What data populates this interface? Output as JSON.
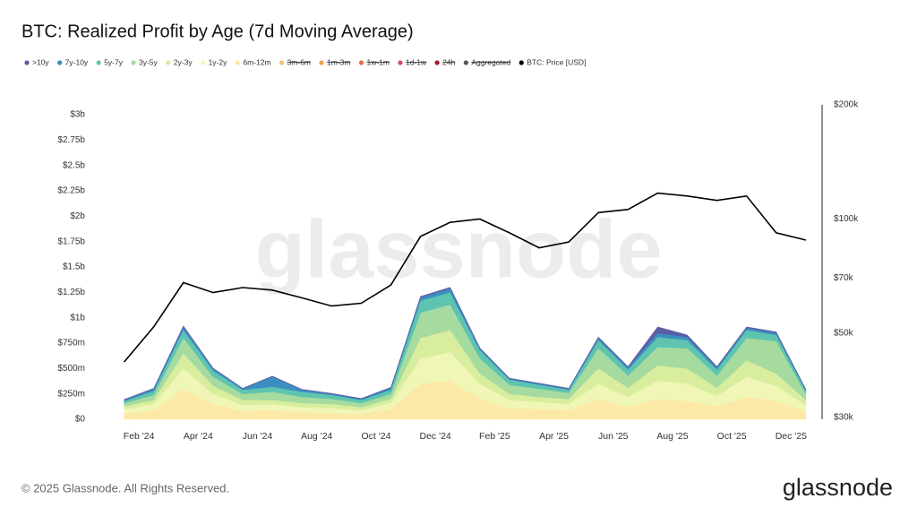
{
  "chart_data": {
    "type": "stacked-area",
    "title": "BTC: Realized Profit by Age (7d Moving Average)",
    "x": [
      "2024-01",
      "2024-02",
      "2024-03",
      "2024-04",
      "2024-05",
      "2024-06",
      "2024-07",
      "2024-08",
      "2024-09",
      "2024-10",
      "2024-11",
      "2024-12",
      "2025-01",
      "2025-02",
      "2025-03",
      "2025-04",
      "2025-05",
      "2025-06",
      "2025-07",
      "2025-08",
      "2025-09",
      "2025-10",
      "2025-11",
      "2025-12"
    ],
    "xticks": [
      {
        "value": "2024-02",
        "label": "Feb '24"
      },
      {
        "value": "2024-04",
        "label": "Apr '24"
      },
      {
        "value": "2024-06",
        "label": "Jun '24"
      },
      {
        "value": "2024-08",
        "label": "Aug '24"
      },
      {
        "value": "2024-10",
        "label": "Oct '24"
      },
      {
        "value": "2024-12",
        "label": "Dec '24"
      },
      {
        "value": "2025-02",
        "label": "Feb '25"
      },
      {
        "value": "2025-04",
        "label": "Apr '25"
      },
      {
        "value": "2025-06",
        "label": "Jun '25"
      },
      {
        "value": "2025-08",
        "label": "Aug '25"
      },
      {
        "value": "2025-10",
        "label": "Oct '25"
      },
      {
        "value": "2025-12",
        "label": "Dec '25"
      }
    ],
    "ylim": [
      0,
      3000000000.0
    ],
    "yticks": [
      {
        "value": 0,
        "label": "$0"
      },
      {
        "value": 250000000.0,
        "label": "$250m"
      },
      {
        "value": 500000000.0,
        "label": "$500m"
      },
      {
        "value": 750000000.0,
        "label": "$750m"
      },
      {
        "value": 1000000000.0,
        "label": "$1b"
      },
      {
        "value": 1250000000.0,
        "label": "$1.25b"
      },
      {
        "value": 1500000000.0,
        "label": "$1.5b"
      },
      {
        "value": 1750000000.0,
        "label": "$1.75b"
      },
      {
        "value": 2000000000.0,
        "label": "$2b"
      },
      {
        "value": 2250000000.0,
        "label": "$2.25b"
      },
      {
        "value": 2500000000.0,
        "label": "$2.5b"
      },
      {
        "value": 2750000000.0,
        "label": "$2.75b"
      },
      {
        "value": 3000000000.0,
        "label": "$3b"
      }
    ],
    "y2lim": [
      30000,
      200000
    ],
    "y2_log": true,
    "y2ticks": [
      {
        "value": 30000,
        "label": "$30k"
      },
      {
        "value": 50000,
        "label": "$50k"
      },
      {
        "value": 70000,
        "label": "$70k"
      },
      {
        "value": 100000,
        "label": "$100k"
      },
      {
        "value": 200000,
        "label": "$200k"
      }
    ],
    "series": [
      {
        "name": ">10y",
        "color": "#5b5ea6",
        "values": [
          5000000.0,
          5000000.0,
          10000000.0,
          5000000.0,
          5000000.0,
          5000000.0,
          5000000.0,
          5000000.0,
          5000000.0,
          5000000.0,
          10000000.0,
          10000000.0,
          5000000.0,
          5000000.0,
          5000000.0,
          5000000.0,
          10000000.0,
          10000000.0,
          60000000.0,
          20000000.0,
          10000000.0,
          10000000.0,
          10000000.0,
          5000000.0
        ]
      },
      {
        "name": "7y-10y",
        "color": "#3a8fc0",
        "values": [
          10000000.0,
          20000000.0,
          30000000.0,
          20000000.0,
          10000000.0,
          100000000.0,
          20000000.0,
          10000000.0,
          10000000.0,
          20000000.0,
          30000000.0,
          40000000.0,
          20000000.0,
          10000000.0,
          10000000.0,
          10000000.0,
          20000000.0,
          20000000.0,
          40000000.0,
          30000000.0,
          20000000.0,
          20000000.0,
          20000000.0,
          10000000.0
        ]
      },
      {
        "name": "5y-7y",
        "color": "#5ec4b0",
        "values": [
          20000000.0,
          40000000.0,
          80000000.0,
          60000000.0,
          40000000.0,
          50000000.0,
          50000000.0,
          40000000.0,
          30000000.0,
          40000000.0,
          120000000.0,
          120000000.0,
          80000000.0,
          50000000.0,
          40000000.0,
          30000000.0,
          80000000.0,
          60000000.0,
          100000000.0,
          80000000.0,
          60000000.0,
          80000000.0,
          60000000.0,
          30000000.0
        ]
      },
      {
        "name": "3y-5y",
        "color": "#a6dba0",
        "values": [
          30000000.0,
          50000000.0,
          150000000.0,
          90000000.0,
          60000000.0,
          80000000.0,
          60000000.0,
          50000000.0,
          40000000.0,
          50000000.0,
          250000000.0,
          250000000.0,
          150000000.0,
          90000000.0,
          80000000.0,
          60000000.0,
          200000000.0,
          120000000.0,
          180000000.0,
          200000000.0,
          120000000.0,
          220000000.0,
          320000000.0,
          60000000.0
        ]
      },
      {
        "name": "2y-3y",
        "color": "#d8ee9e",
        "values": [
          30000000.0,
          40000000.0,
          150000000.0,
          80000000.0,
          50000000.0,
          40000000.0,
          40000000.0,
          40000000.0,
          30000000.0,
          40000000.0,
          200000000.0,
          220000000.0,
          100000000.0,
          60000000.0,
          50000000.0,
          50000000.0,
          150000000.0,
          90000000.0,
          150000000.0,
          150000000.0,
          80000000.0,
          160000000.0,
          120000000.0,
          50000000.0
        ]
      },
      {
        "name": "1y-2y",
        "color": "#f0f6b5",
        "values": [
          40000000.0,
          60000000.0,
          200000000.0,
          100000000.0,
          60000000.0,
          60000000.0,
          50000000.0,
          50000000.0,
          40000000.0,
          60000000.0,
          250000000.0,
          280000000.0,
          150000000.0,
          80000000.0,
          70000000.0,
          60000000.0,
          150000000.0,
          100000000.0,
          180000000.0,
          170000000.0,
          100000000.0,
          200000000.0,
          150000000.0,
          60000000.0
        ]
      },
      {
        "name": "6m-12m",
        "color": "#fde9a7",
        "values": [
          60000000.0,
          90000000.0,
          300000000.0,
          150000000.0,
          80000000.0,
          90000000.0,
          70000000.0,
          60000000.0,
          50000000.0,
          100000000.0,
          350000000.0,
          380000000.0,
          200000000.0,
          110000000.0,
          100000000.0,
          90000000.0,
          200000000.0,
          120000000.0,
          200000000.0,
          180000000.0,
          130000000.0,
          220000000.0,
          180000000.0,
          80000000.0
        ]
      },
      {
        "name": "BTC: Price [USD]",
        "color": "#000000",
        "axis": "y2",
        "values": [
          42000,
          52000,
          68000,
          64000,
          66000,
          65000,
          62000,
          59000,
          60000,
          67000,
          90000,
          98000,
          100000,
          92000,
          84000,
          87000,
          104000,
          106000,
          117000,
          115000,
          112000,
          115000,
          92000,
          88000
        ]
      }
    ],
    "hidden_series": [
      {
        "name": "3m-6m",
        "color": "#f6c26b"
      },
      {
        "name": "1m-3m",
        "color": "#f39c50"
      },
      {
        "name": "1w-1m",
        "color": "#e8684a"
      },
      {
        "name": "1d-1w",
        "color": "#d9445a"
      },
      {
        "name": "24h",
        "color": "#a51c30"
      },
      {
        "name": "Aggregated",
        "color": "#555555"
      }
    ]
  },
  "watermark": "glassnode",
  "footer": "© 2025 Glassnode. All Rights Reserved.",
  "logo": "glassnode"
}
